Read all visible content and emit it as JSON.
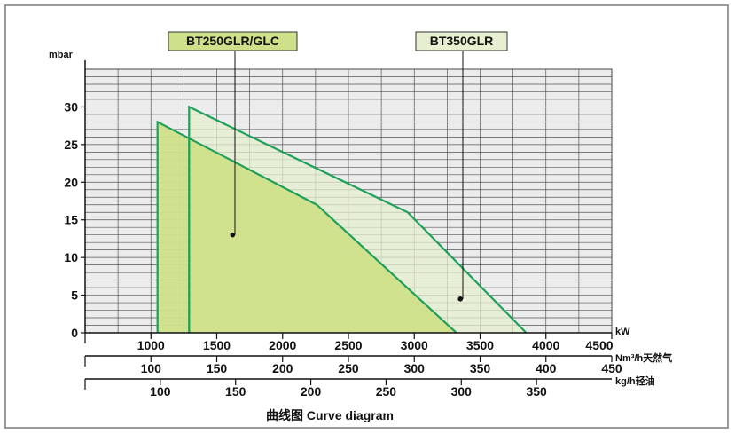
{
  "chart_data": {
    "type": "area",
    "ylabel": "mbar",
    "ylim": [
      0,
      35
    ],
    "y_ticks": [
      0,
      5,
      10,
      15,
      20,
      25,
      30
    ],
    "grid": true,
    "caption": "曲线图  Curve diagram",
    "x_axes": [
      {
        "unit": "kW",
        "range": [
          500,
          4500
        ],
        "ticks": [
          1000,
          1500,
          2000,
          2500,
          3000,
          3500,
          4000,
          4500
        ]
      },
      {
        "unit": "Nm³/h天然气",
        "range": [
          50,
          450
        ],
        "ticks": [
          100,
          150,
          200,
          250,
          300,
          350,
          400,
          450
        ]
      },
      {
        "unit": "kg/h轻油",
        "range": [
          50,
          400
        ],
        "ticks": [
          100,
          150,
          200,
          250,
          300,
          350
        ]
      }
    ],
    "series": [
      {
        "name": "BT250GLR/GLC",
        "color": "#cfe08a",
        "points": [
          [
            1050,
            0
          ],
          [
            1050,
            28
          ],
          [
            2260,
            17
          ],
          [
            3320,
            0
          ]
        ],
        "dashed_min_x": 1290,
        "marker": [
          1620,
          13
        ]
      },
      {
        "name": "BT350GLR",
        "color": "#e6efcf",
        "points": [
          [
            1290,
            0
          ],
          [
            1290,
            30
          ],
          [
            2950,
            16
          ],
          [
            3850,
            0
          ]
        ],
        "marker": [
          3350,
          4.5
        ]
      }
    ]
  }
}
